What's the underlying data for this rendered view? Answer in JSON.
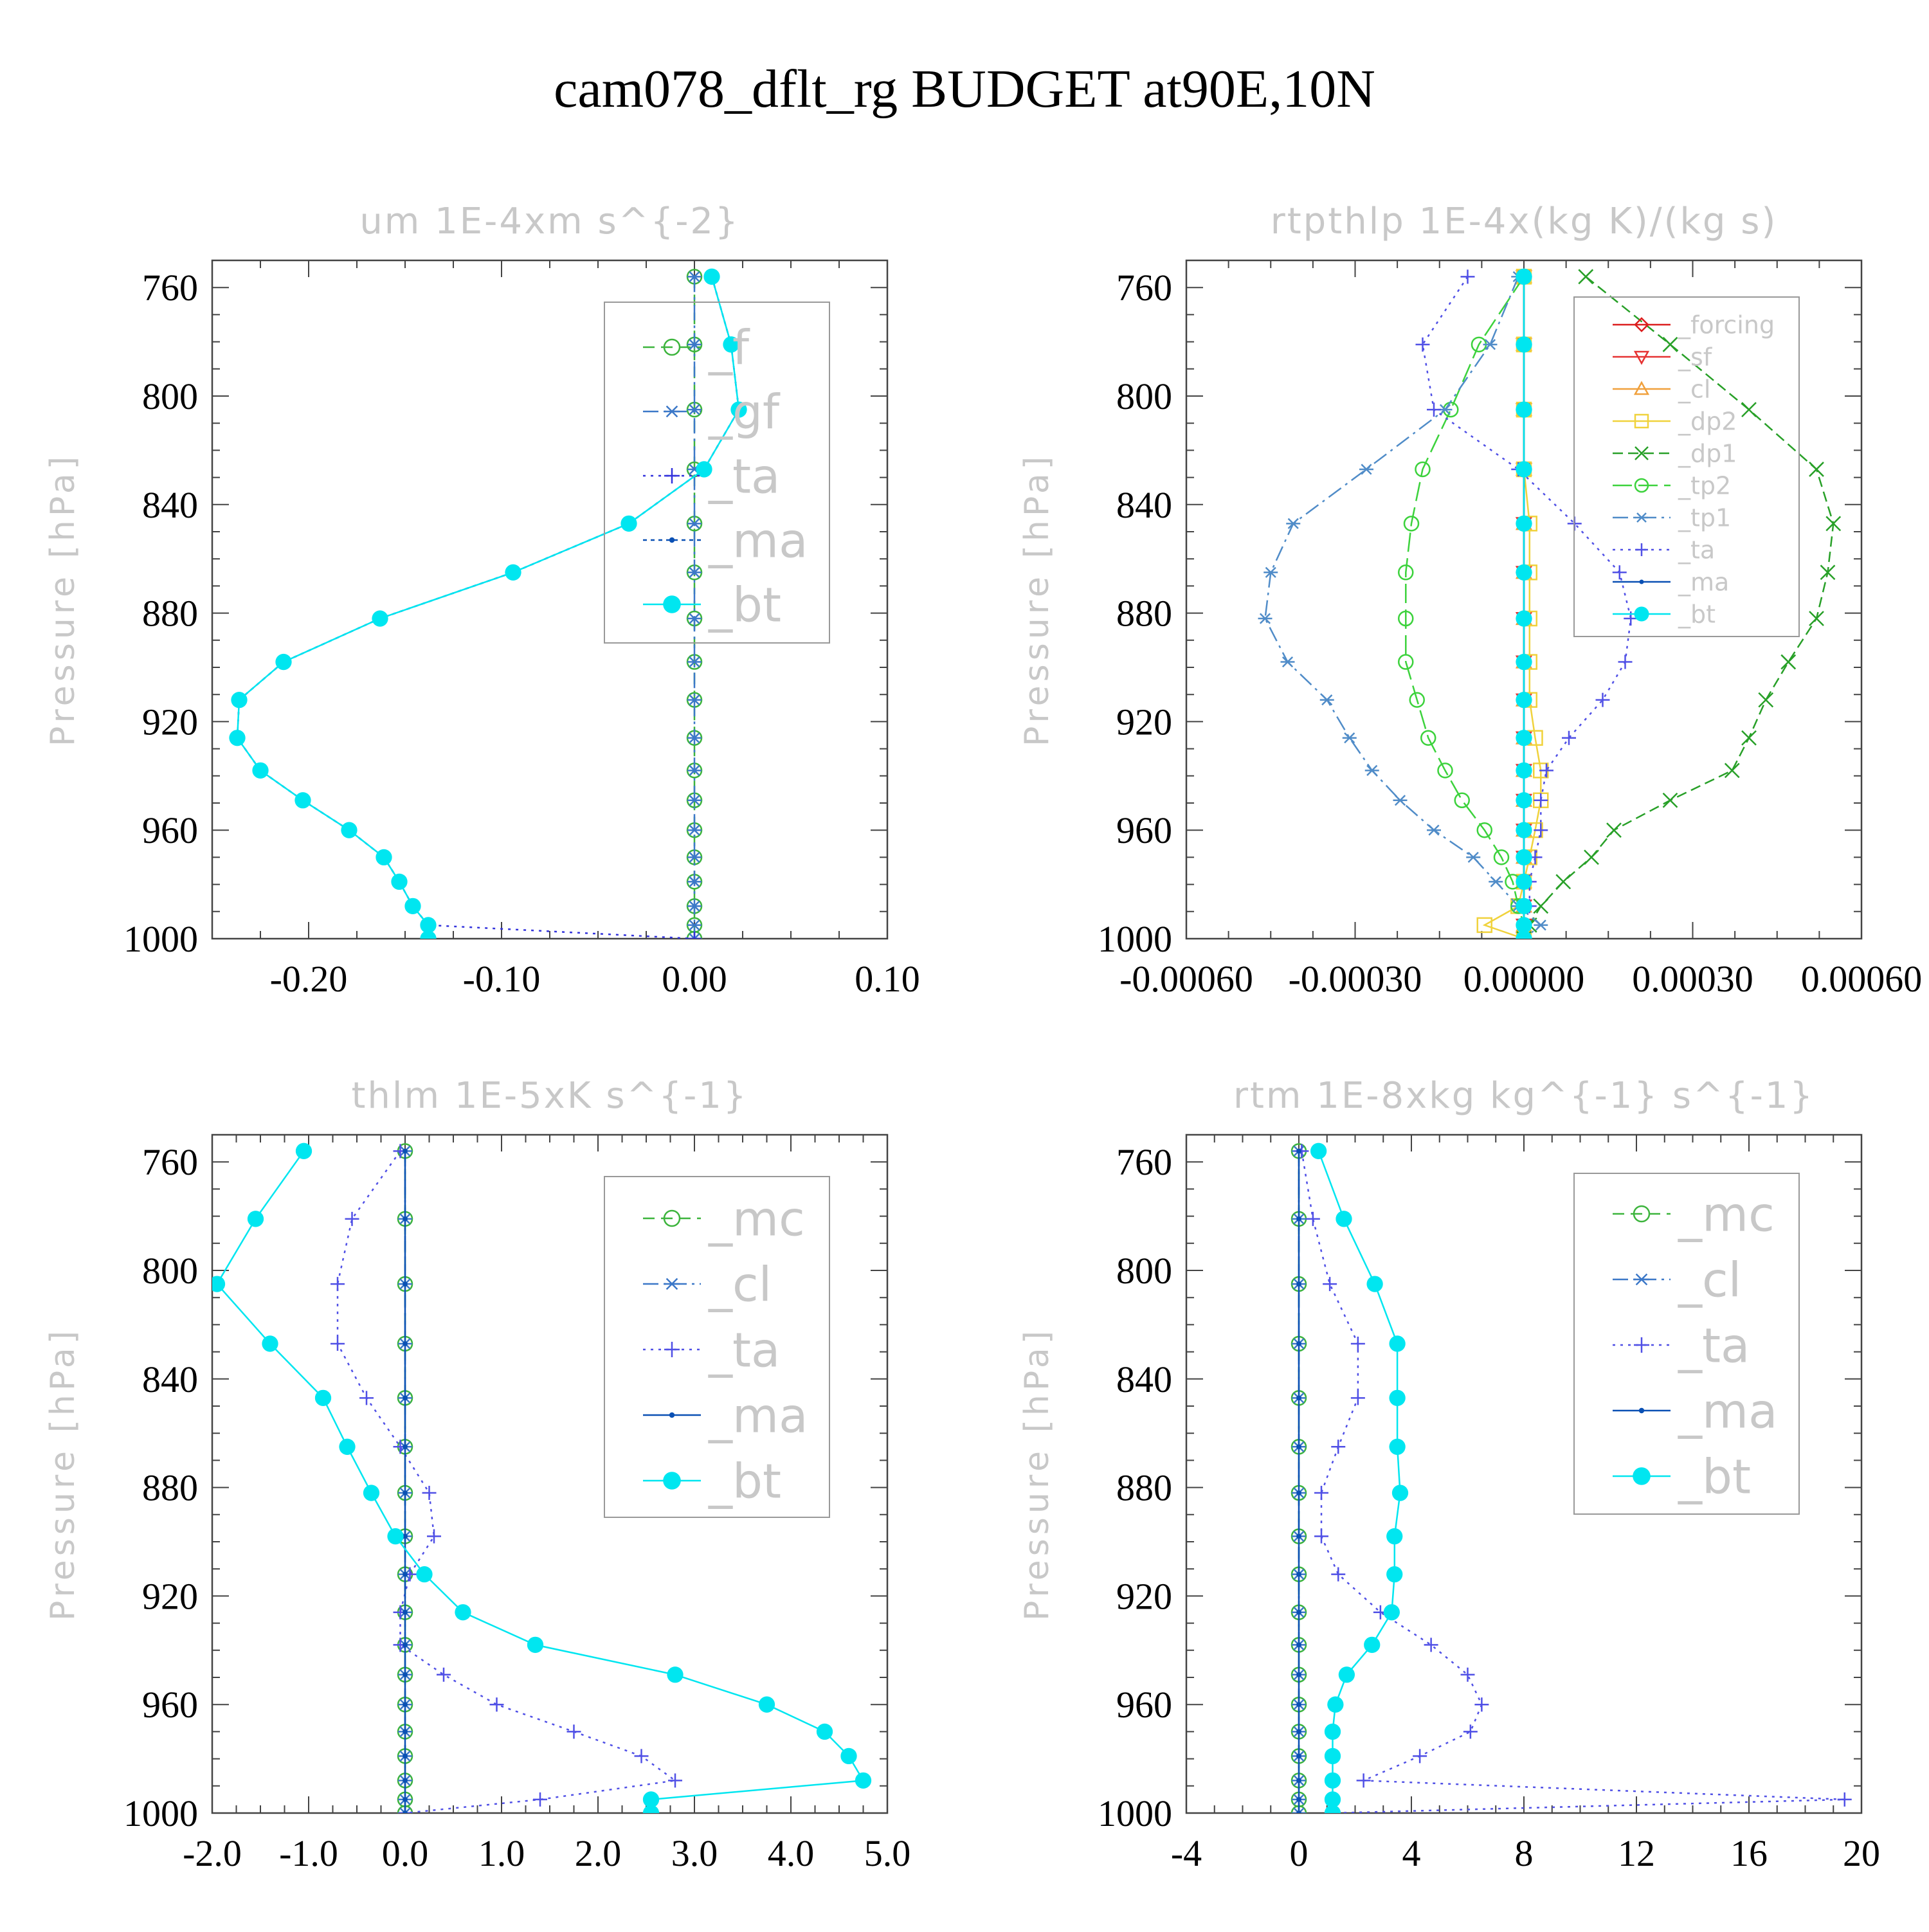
{
  "title": "cam078_dflt_rg  BUDGET at90E,10N",
  "chart_data": [
    {
      "type": "line",
      "title": "um  1E-4xm s^{-2}",
      "ylabel": "Pressure [hPa]",
      "xlim": [
        -0.25,
        0.1
      ],
      "ylim": [
        1000,
        750
      ],
      "xticks": [
        -0.2,
        -0.1,
        0.0,
        0.1
      ],
      "xtick_labels": [
        "-0.20",
        "-0.10",
        "0.00",
        "0.10"
      ],
      "yticks": [
        760,
        800,
        840,
        880,
        920,
        960,
        1000
      ],
      "ytick_labels": [
        "760",
        "800",
        "840",
        "880",
        "920",
        "960",
        "1000"
      ],
      "pressure": [
        756,
        781,
        805,
        827,
        847,
        865,
        882,
        898,
        912,
        926,
        938,
        949,
        960,
        970,
        979,
        988,
        995,
        1000
      ],
      "legend_position": "top-right",
      "series": [
        {
          "name": "_f",
          "color": "#3cb43c",
          "marker": "circle",
          "dash": "18 10",
          "values": [
            0,
            0,
            0,
            0,
            0,
            0,
            0,
            0,
            0,
            0,
            0,
            0,
            0,
            0,
            0,
            0,
            0,
            0
          ]
        },
        {
          "name": "_gf",
          "color": "#3c78c8",
          "marker": "star",
          "dash": "24 8 4 8",
          "values": [
            0,
            0,
            0,
            0,
            0,
            0,
            0,
            0,
            0,
            0,
            0,
            0,
            0,
            0,
            0,
            0,
            0,
            0
          ]
        },
        {
          "name": "_ta",
          "color": "#3232dc",
          "marker": "plus",
          "dash": "4 8",
          "values": [
            0.009,
            0.019,
            0.023,
            0.005,
            -0.034,
            -0.094,
            -0.163,
            -0.213,
            -0.236,
            -0.237,
            -0.225,
            -0.203,
            -0.179,
            -0.161,
            -0.153,
            -0.146,
            -0.138,
            0
          ]
        },
        {
          "name": "_ma",
          "color": "#0a50b4",
          "marker": "dot",
          "dash": "6 6",
          "values": [
            0.009,
            0.019,
            0.023,
            0.005,
            -0.034,
            -0.094,
            -0.163,
            -0.213,
            -0.236,
            -0.237,
            -0.225,
            -0.203,
            -0.179,
            -0.161,
            -0.153,
            -0.146,
            -0.138,
            -0.138
          ]
        },
        {
          "name": "_bt",
          "color": "#00e6f0",
          "marker": "filled",
          "dash": "",
          "values": [
            0.009,
            0.019,
            0.023,
            0.005,
            -0.034,
            -0.094,
            -0.163,
            -0.213,
            -0.236,
            -0.237,
            -0.225,
            -0.203,
            -0.179,
            -0.161,
            -0.153,
            -0.146,
            -0.138,
            -0.138
          ]
        }
      ]
    },
    {
      "type": "line",
      "title": "rtpthlp  1E-4x(kg K)/(kg s)",
      "ylabel": "Pressure [hPa]",
      "xlim": [
        -0.0006,
        0.0006
      ],
      "ylim": [
        1000,
        750
      ],
      "xticks": [
        -0.0006,
        -0.0003,
        0.0,
        0.0003,
        0.0006
      ],
      "xtick_labels": [
        "-0.00060",
        "-0.00030",
        "0.00000",
        "0.00030",
        "0.00060"
      ],
      "yticks": [
        760,
        800,
        840,
        880,
        920,
        960,
        1000
      ],
      "ytick_labels": [
        "760",
        "800",
        "840",
        "880",
        "920",
        "960",
        "1000"
      ],
      "pressure": [
        756,
        781,
        805,
        827,
        847,
        865,
        882,
        898,
        912,
        926,
        938,
        949,
        960,
        970,
        979,
        988,
        995,
        1000
      ],
      "legend_position": "top-right",
      "series": [
        {
          "name": "_forcing",
          "color": "#dc1e1e",
          "marker": "diamond",
          "dash": "",
          "values": [
            0,
            0,
            0,
            0,
            0,
            0,
            0,
            0,
            0,
            0,
            0,
            0,
            0,
            0,
            0,
            0,
            0,
            0
          ]
        },
        {
          "name": "_sf",
          "color": "#e63232",
          "marker": "tri-down",
          "dash": "",
          "values": [
            0,
            0,
            0,
            0,
            0,
            0,
            0,
            0,
            0,
            0,
            0,
            0,
            0,
            0,
            0,
            0,
            0,
            0
          ]
        },
        {
          "name": "_cl",
          "color": "#f0a03c",
          "marker": "tri-up",
          "dash": "",
          "values": [
            0,
            0,
            0,
            0,
            0,
            0,
            0,
            0,
            0,
            0,
            0,
            0,
            0,
            0,
            0,
            0,
            0,
            0
          ]
        },
        {
          "name": "_dp2",
          "color": "#f0d23c",
          "marker": "square",
          "dash": "",
          "values": [
            0,
            0,
            0,
            0,
            1e-05,
            1e-05,
            1e-05,
            1e-05,
            1e-05,
            2e-05,
            3e-05,
            3e-05,
            2e-05,
            1e-05,
            0,
            -1e-05,
            -7e-05,
            0
          ]
        },
        {
          "name": "_dp1",
          "color": "#28a028",
          "marker": "x",
          "dash": "16 8",
          "values": [
            0.00011,
            0.00026,
            0.0004,
            0.00052,
            0.00055,
            0.00054,
            0.00052,
            0.00047,
            0.00043,
            0.0004,
            0.00037,
            0.00026,
            0.00016,
            0.00012,
            7e-05,
            3e-05,
            1e-05,
            0
          ]
        },
        {
          "name": "_tp2",
          "color": "#3cd23c",
          "marker": "circle",
          "dash": "30 10",
          "values": [
            0,
            -8e-05,
            -0.00013,
            -0.00018,
            -0.0002,
            -0.00021,
            -0.00021,
            -0.00021,
            -0.00019,
            -0.00017,
            -0.00014,
            -0.00011,
            -7e-05,
            -4e-05,
            -2e-05,
            -1e-05,
            0,
            0
          ]
        },
        {
          "name": "_tp1",
          "color": "#508cc8",
          "marker": "star",
          "dash": "24 8 4 8",
          "values": [
            -1e-05,
            -6e-05,
            -0.00014,
            -0.00028,
            -0.00041,
            -0.00045,
            -0.00046,
            -0.00042,
            -0.00035,
            -0.00031,
            -0.00027,
            -0.00022,
            -0.00016,
            -9e-05,
            -5e-05,
            -1e-05,
            3e-05,
            0
          ]
        },
        {
          "name": "_ta",
          "color": "#5050e6",
          "marker": "plus",
          "dash": "4 8",
          "values": [
            -0.0001,
            -0.00018,
            -0.00016,
            -1e-05,
            9e-05,
            0.00017,
            0.00019,
            0.00018,
            0.00014,
            8e-05,
            4e-05,
            3e-05,
            3e-05,
            2e-05,
            1e-05,
            1e-05,
            0,
            0
          ]
        },
        {
          "name": "_ma",
          "color": "#0a50b4",
          "marker": "dot",
          "dash": "",
          "values": [
            0,
            0,
            0,
            0,
            0,
            0,
            0,
            0,
            0,
            0,
            0,
            0,
            0,
            0,
            0,
            0,
            0,
            0
          ]
        },
        {
          "name": "_bt",
          "color": "#00e6f0",
          "marker": "filled",
          "dash": "",
          "values": [
            0,
            0,
            0,
            0,
            0,
            0,
            0,
            0,
            0,
            0,
            0,
            0,
            0,
            0,
            0,
            0,
            0,
            0
          ]
        }
      ]
    },
    {
      "type": "line",
      "title": "thlm  1E-5xK s^{-1}",
      "ylabel": "Pressure [hPa]",
      "xlim": [
        -2.0,
        5.0
      ],
      "ylim": [
        1000,
        750
      ],
      "xticks": [
        -2.0,
        -1.0,
        0.0,
        1.0,
        2.0,
        3.0,
        4.0,
        5.0
      ],
      "xtick_labels": [
        "-2.0",
        "-1.0",
        "0.0",
        "1.0",
        "2.0",
        "3.0",
        "4.0",
        "5.0"
      ],
      "yticks": [
        760,
        800,
        840,
        880,
        920,
        960,
        1000
      ],
      "ytick_labels": [
        "760",
        "800",
        "840",
        "880",
        "920",
        "960",
        "1000"
      ],
      "pressure": [
        756,
        781,
        805,
        827,
        847,
        865,
        882,
        898,
        912,
        926,
        938,
        949,
        960,
        970,
        979,
        988,
        995,
        1000
      ],
      "legend_position": "top-right",
      "series": [
        {
          "name": "_mc",
          "color": "#3cb43c",
          "marker": "circle",
          "dash": "18 10",
          "values": [
            0,
            0,
            0,
            0,
            0,
            0,
            0,
            0,
            0,
            0,
            0,
            0,
            0,
            0,
            0,
            0,
            0,
            0
          ]
        },
        {
          "name": "_cl",
          "color": "#3c78c8",
          "marker": "star",
          "dash": "24 8 4 8",
          "values": [
            0,
            0,
            0,
            0,
            0,
            0,
            0,
            0,
            0,
            0,
            0,
            0,
            0,
            0,
            0,
            0,
            0,
            0
          ]
        },
        {
          "name": "_ta",
          "color": "#5050e6",
          "marker": "plus",
          "dash": "4 8",
          "values": [
            -0.05,
            -0.55,
            -0.7,
            -0.7,
            -0.4,
            -0.05,
            0.25,
            0.3,
            0.05,
            -0.05,
            -0.05,
            0.4,
            0.95,
            1.75,
            2.45,
            2.8,
            1.4,
            0
          ]
        },
        {
          "name": "_ma",
          "color": "#0a50b4",
          "marker": "dot",
          "dash": "",
          "values": [
            0,
            0,
            0,
            0,
            0,
            0,
            0,
            0,
            0,
            0,
            0,
            0,
            0,
            0,
            0,
            0,
            0,
            0
          ]
        },
        {
          "name": "_bt",
          "color": "#00e6f0",
          "marker": "filled",
          "dash": "",
          "values": [
            -1.05,
            -1.55,
            -1.95,
            -1.4,
            -0.85,
            -0.6,
            -0.35,
            -0.1,
            0.2,
            0.6,
            1.35,
            2.8,
            3.75,
            4.35,
            4.6,
            4.75,
            2.55,
            2.55
          ]
        }
      ]
    },
    {
      "type": "line",
      "title": "rtm  1E-8xkg kg^{-1} s^{-1}",
      "ylabel": "Pressure [hPa]",
      "xlim": [
        -4,
        20
      ],
      "ylim": [
        1000,
        750
      ],
      "xticks": [
        -4,
        0,
        4,
        8,
        12,
        16,
        20
      ],
      "xtick_labels": [
        "-4",
        "0",
        "4",
        "8",
        "12",
        "16",
        "20"
      ],
      "yticks": [
        760,
        800,
        840,
        880,
        920,
        960,
        1000
      ],
      "ytick_labels": [
        "760",
        "800",
        "840",
        "880",
        "920",
        "960",
        "1000"
      ],
      "pressure": [
        756,
        781,
        805,
        827,
        847,
        865,
        882,
        898,
        912,
        926,
        938,
        949,
        960,
        970,
        979,
        988,
        995,
        1000
      ],
      "legend_position": "top-right",
      "series": [
        {
          "name": "_mc",
          "color": "#3cb43c",
          "marker": "circle",
          "dash": "18 10",
          "values": [
            0,
            0,
            0,
            0,
            0,
            0,
            0,
            0,
            0,
            0,
            0,
            0,
            0,
            0,
            0,
            0,
            0,
            0
          ]
        },
        {
          "name": "_cl",
          "color": "#3c78c8",
          "marker": "star",
          "dash": "24 8 4 8",
          "values": [
            0,
            0,
            0,
            0,
            0,
            0,
            0,
            0,
            0,
            0,
            0,
            0,
            0,
            0,
            0,
            0,
            0,
            0
          ]
        },
        {
          "name": "_ta",
          "color": "#5050e6",
          "marker": "plus",
          "dash": "4 8",
          "values": [
            0.1,
            0.5,
            1.1,
            2.1,
            2.1,
            1.4,
            0.8,
            0.8,
            1.4,
            2.9,
            4.7,
            6.0,
            6.5,
            6.1,
            4.3,
            2.3,
            19.4,
            1.2
          ]
        },
        {
          "name": "_ma",
          "color": "#0a50b4",
          "marker": "dot",
          "dash": "",
          "values": [
            0,
            0,
            0,
            0,
            0,
            0,
            0,
            0,
            0,
            0,
            0,
            0,
            0,
            0,
            0,
            0,
            0,
            0
          ]
        },
        {
          "name": "_bt",
          "color": "#00e6f0",
          "marker": "filled",
          "dash": "",
          "values": [
            0.7,
            1.6,
            2.7,
            3.5,
            3.5,
            3.5,
            3.6,
            3.4,
            3.4,
            3.3,
            2.6,
            1.7,
            1.3,
            1.2,
            1.2,
            1.2,
            1.2,
            1.2
          ]
        }
      ]
    }
  ]
}
